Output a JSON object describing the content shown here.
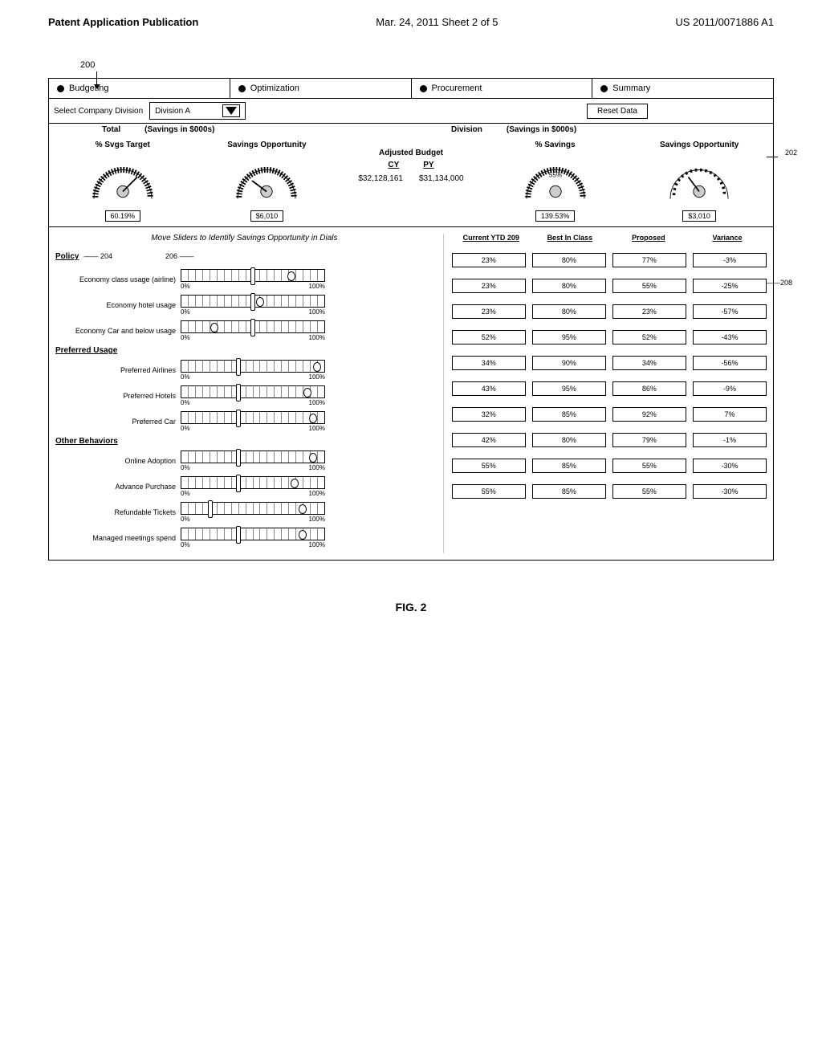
{
  "header": {
    "left": "Patent Application Publication",
    "center": "Mar. 24, 2011  Sheet 2 of 5",
    "right": "US 2011/0071886 A1"
  },
  "ref200": "200",
  "tabs": [
    {
      "label": "Budgeting",
      "selected": true
    },
    {
      "label": "Optimization",
      "selected": true
    },
    {
      "label": "Procurement",
      "selected": true
    },
    {
      "label": "Summary",
      "selected": true
    }
  ],
  "select": {
    "label": "Select Company Division",
    "value": "Division A"
  },
  "reset_label": "Reset Data",
  "headers": {
    "total": "Total",
    "savings_in": "(Savings in $000s)",
    "division": "Division"
  },
  "gauges": {
    "left1": {
      "title": "% Svgs Target",
      "value": "60.19%"
    },
    "left2": {
      "title": "Savings Opportunity",
      "value": "$6,010"
    },
    "right1": {
      "title": "% Savings",
      "value": "139.53%",
      "inner": "55%"
    },
    "right2": {
      "title": "Savings Opportunity",
      "value": "$3,010"
    }
  },
  "budget": {
    "title": "Adjusted Budget",
    "cy_label": "CY",
    "py_label": "PY",
    "cy": "$32,128,161",
    "py": "$31,134,000"
  },
  "annot202": "202",
  "hint": "Move Sliders to Identify Savings Opportunity in Dials",
  "annot204": "204",
  "annot206": "206",
  "annot208": "208",
  "cat_policy": "Policy",
  "cat_preferred": "Preferred Usage",
  "cat_other": "Other Behaviors",
  "slider_min": "0%",
  "slider_max": "100%",
  "columns": {
    "c1": "Current YTD 209",
    "c2": "Best In Class",
    "c3": "Proposed",
    "c4": "Variance"
  },
  "rows": [
    {
      "label": "Economy class usage (airline)",
      "thumb1": 50,
      "thumb2": 77,
      "c1": "23%",
      "c2": "80%",
      "c3": "77%",
      "c4": "-3%"
    },
    {
      "label": "Economy hotel usage",
      "thumb1": 50,
      "thumb2": 55,
      "c1": "23%",
      "c2": "80%",
      "c3": "55%",
      "c4": "-25%"
    },
    {
      "label": "Economy Car and below usage",
      "thumb1": 50,
      "thumb2": 23,
      "c1": "23%",
      "c2": "80%",
      "c3": "23%",
      "c4": "-57%"
    },
    {
      "label": "Preferred Airlines",
      "thumb1": 40,
      "thumb2": 95,
      "c1": "52%",
      "c2": "95%",
      "c3": "52%",
      "c4": "-43%"
    },
    {
      "label": "Preferred Hotels",
      "thumb1": 40,
      "thumb2": 88,
      "c1": "34%",
      "c2": "90%",
      "c3": "34%",
      "c4": "-56%"
    },
    {
      "label": "Preferred Car",
      "thumb1": 40,
      "thumb2": 92,
      "c1": "43%",
      "c2": "95%",
      "c3": "86%",
      "c4": "-9%"
    },
    {
      "label": "Online Adoption",
      "thumb1": 40,
      "thumb2": 92,
      "c1": "32%",
      "c2": "85%",
      "c3": "92%",
      "c4": "7%"
    },
    {
      "label": "Advance Purchase",
      "thumb1": 40,
      "thumb2": 79,
      "c1": "42%",
      "c2": "80%",
      "c3": "79%",
      "c4": "-1%"
    },
    {
      "label": "Refundable Tickets",
      "thumb1": 20,
      "thumb2": 85,
      "c1": "55%",
      "c2": "85%",
      "c3": "55%",
      "c4": "-30%"
    },
    {
      "label": "Managed meetings spend",
      "thumb1": 40,
      "thumb2": 85,
      "c1": "55%",
      "c2": "85%",
      "c3": "55%",
      "c4": "-30%"
    }
  ],
  "fig": "FIG. 2"
}
